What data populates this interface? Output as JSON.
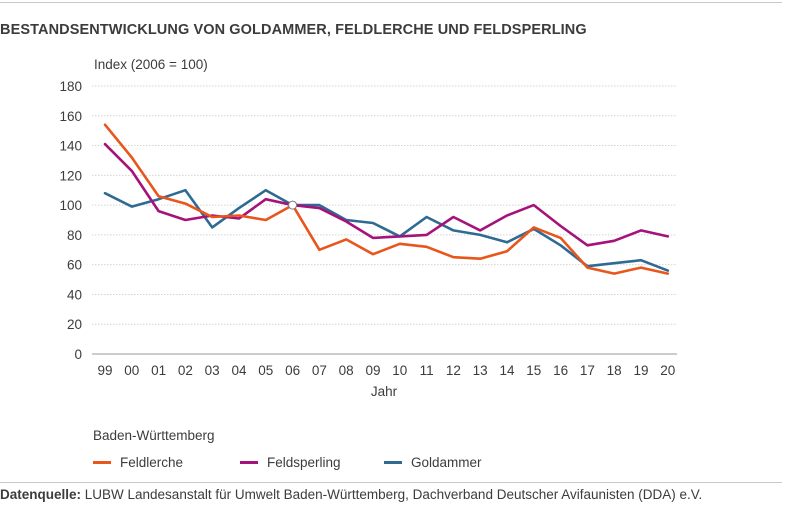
{
  "header": {
    "title": "BESTANDSENTWICKLUNG VON GOLDAMMER, FELDLERCHE UND FELDSPERLING"
  },
  "chart_data": {
    "type": "line",
    "title": "BESTANDSENTWICKLUNG VON GOLDAMMER, FELDLERCHE UND FELDSPERLING",
    "ylabel": "Index (2006 = 100)",
    "xlabel": "Jahr",
    "ylim": [
      0,
      180
    ],
    "yticks": [
      0,
      20,
      40,
      60,
      80,
      100,
      120,
      140,
      160,
      180
    ],
    "grid": true,
    "x": [
      "99",
      "00",
      "01",
      "02",
      "03",
      "04",
      "05",
      "06",
      "07",
      "08",
      "09",
      "10",
      "11",
      "12",
      "13",
      "14",
      "15",
      "16",
      "17",
      "18",
      "19",
      "20"
    ],
    "series": [
      {
        "name": "Feldlerche",
        "color": "#e8561c",
        "values": [
          154,
          132,
          106,
          101,
          92,
          93,
          90,
          100,
          70,
          77,
          67,
          74,
          72,
          65,
          64,
          69,
          85,
          78,
          58,
          54,
          58,
          54
        ]
      },
      {
        "name": "Feldsperling",
        "color": "#a5127a",
        "values": [
          141,
          123,
          96,
          90,
          93,
          91,
          104,
          100,
          98,
          89,
          78,
          79,
          80,
          92,
          83,
          93,
          100,
          86,
          73,
          76,
          83,
          79
        ]
      },
      {
        "name": "Goldammer",
        "color": "#2f6a92",
        "values": [
          108,
          99,
          104,
          110,
          85,
          98,
          110,
          100,
          100,
          90,
          88,
          79,
          92,
          83,
          80,
          75,
          84,
          73,
          59,
          61,
          63,
          56
        ]
      }
    ],
    "reference_point": {
      "x": "06",
      "y": 100
    },
    "legend_title": "Baden-Württemberg",
    "legend_position": "bottom-left"
  },
  "footer": {
    "source_label": "Datenquelle:",
    "source_text": " LUBW Landesanstalt für Umwelt Baden-Württemberg,  Dachverband Deutscher Avifaunisten (DDA) e.V."
  }
}
